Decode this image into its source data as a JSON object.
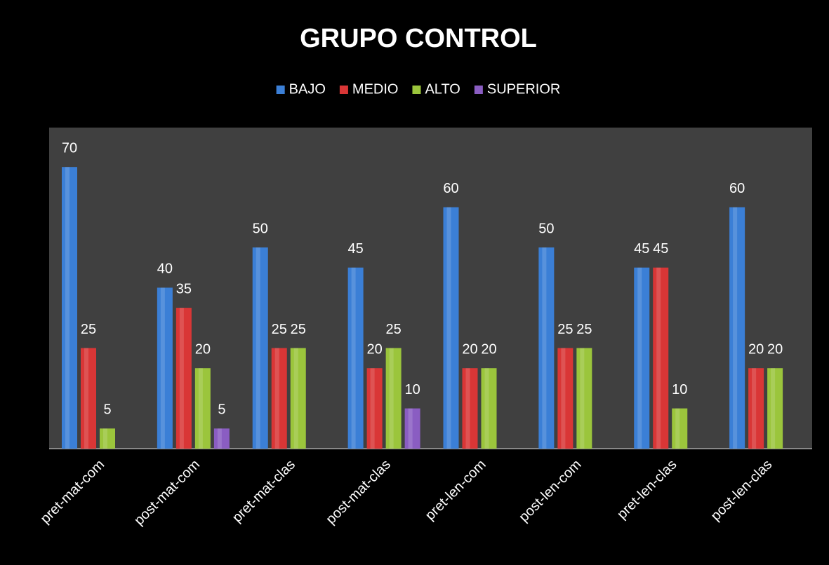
{
  "chart_data": {
    "type": "bar",
    "title": "GRUPO CONTROL",
    "categories": [
      "pret-mat-com",
      "post-mat-com",
      "pret-mat-clas",
      "post-mat-clas",
      "pret-len-com",
      "post-len-com",
      "pret-len-clas",
      "post-len-clas"
    ],
    "series": [
      {
        "name": "BAJO",
        "color": "#3b7fd6",
        "values": [
          70,
          40,
          50,
          45,
          60,
          50,
          45,
          60
        ]
      },
      {
        "name": "MEDIO",
        "color": "#d93636",
        "values": [
          25,
          35,
          25,
          20,
          20,
          25,
          45,
          20
        ]
      },
      {
        "name": "ALTO",
        "color": "#9bc53c",
        "values": [
          5,
          20,
          25,
          25,
          20,
          25,
          10,
          20
        ]
      },
      {
        "name": "SUPERIOR",
        "color": "#8a5dc2",
        "values": [
          null,
          5,
          null,
          10,
          null,
          null,
          null,
          null
        ]
      }
    ],
    "legend": "top"
  }
}
